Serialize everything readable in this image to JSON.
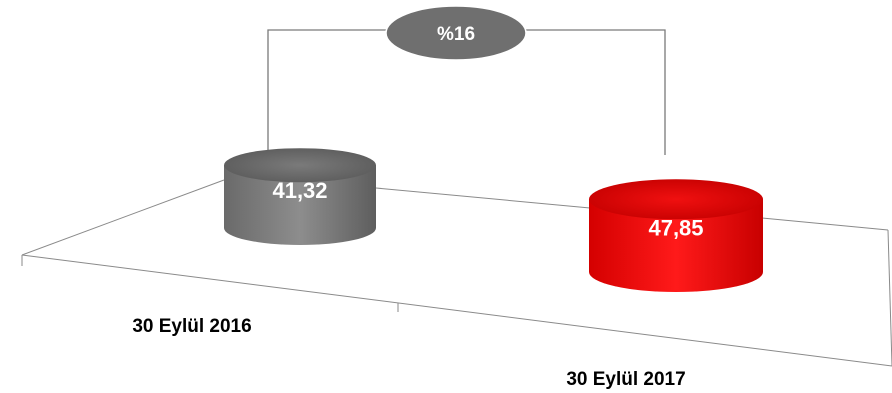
{
  "chart_data": {
    "type": "bar",
    "style": "3d-cylinder",
    "categories": [
      "30 Eylül 2016",
      "30 Eylül 2017"
    ],
    "values": [
      41.32,
      47.85
    ],
    "value_labels": [
      "41,32",
      "47,85"
    ],
    "growth_label": "%16",
    "colors": [
      "#6b6b6b",
      "#e00000"
    ],
    "growth_bubble_color": "#6f6f6f",
    "legend": "none",
    "grid": false
  }
}
